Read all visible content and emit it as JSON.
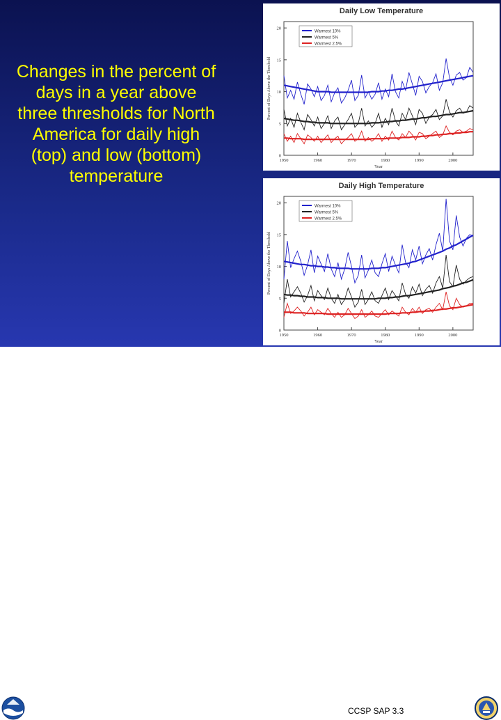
{
  "slide": {
    "body_text": "Changes in the percent of days in a year above three thresholds for North America for daily high (top) and low (bottom) temperature",
    "source": "CCSP SAP 3.3",
    "logos": [
      "noaa-logo",
      "doc-seal"
    ]
  },
  "chart_data": [
    {
      "type": "line",
      "title": "Daily Low Temperature",
      "xlabel": "Year",
      "ylabel": "Percent of Days Above the Threshold",
      "xlim": [
        1950,
        2006
      ],
      "ylim": [
        0,
        21
      ],
      "xticks": [
        "1950",
        "1960",
        "1970",
        "1980",
        "1990",
        "2000"
      ],
      "xtick_values": [
        1950,
        1960,
        1970,
        1980,
        1990,
        2000
      ],
      "yticks": [
        "0",
        "5",
        "10",
        "15",
        "20"
      ],
      "ytick_values": [
        0,
        5,
        10,
        15,
        20
      ],
      "legend_position": "top-left",
      "x": [
        1950,
        1951,
        1952,
        1953,
        1954,
        1955,
        1956,
        1957,
        1958,
        1959,
        1960,
        1961,
        1962,
        1963,
        1964,
        1965,
        1966,
        1967,
        1968,
        1969,
        1970,
        1971,
        1972,
        1973,
        1974,
        1975,
        1976,
        1977,
        1978,
        1979,
        1980,
        1981,
        1982,
        1983,
        1984,
        1985,
        1986,
        1987,
        1988,
        1989,
        1990,
        1991,
        1992,
        1993,
        1994,
        1995,
        1996,
        1997,
        1998,
        1999,
        2000,
        2001,
        2002,
        2003,
        2004,
        2005,
        2006
      ],
      "series": [
        {
          "name": "Warmest 10%",
          "color": "#2222cc",
          "values": [
            12.5,
            9.0,
            10.2,
            8.8,
            11.5,
            9.6,
            8.0,
            11.2,
            10.4,
            9.2,
            10.8,
            8.6,
            9.4,
            11.0,
            8.4,
            9.8,
            10.6,
            8.2,
            9.0,
            10.2,
            11.8,
            8.6,
            9.4,
            12.6,
            9.0,
            10.0,
            8.8,
            9.6,
            11.4,
            8.8,
            10.4,
            9.2,
            12.8,
            10.0,
            9.0,
            11.6,
            10.2,
            13.0,
            11.2,
            9.4,
            12.4,
            11.6,
            9.8,
            10.8,
            11.4,
            12.8,
            10.2,
            11.4,
            15.2,
            12.2,
            11.0,
            12.6,
            13.0,
            11.8,
            12.2,
            13.8,
            13.0
          ],
          "trend": [
            11.0,
            10.9,
            10.8,
            10.7,
            10.6,
            10.5,
            10.4,
            10.3,
            10.2,
            10.1,
            10.0,
            10.0,
            10.0,
            10.0,
            9.9,
            9.9,
            9.9,
            9.9,
            9.9,
            9.9,
            9.9,
            9.9,
            9.9,
            9.9,
            9.9,
            9.9,
            10.0,
            10.0,
            10.0,
            10.1,
            10.1,
            10.2,
            10.2,
            10.3,
            10.4,
            10.4,
            10.5,
            10.6,
            10.7,
            10.8,
            10.9,
            11.0,
            11.1,
            11.2,
            11.3,
            11.4,
            11.5,
            11.6,
            11.7,
            11.8,
            11.9,
            12.0,
            12.1,
            12.2,
            12.3,
            12.4,
            12.5
          ]
        },
        {
          "name": "Warmest 5%",
          "color": "#222222",
          "values": [
            7.2,
            4.6,
            5.8,
            4.4,
            6.6,
            5.2,
            4.0,
            6.4,
            5.6,
            4.6,
            6.0,
            4.2,
            5.0,
            6.2,
            4.2,
            5.4,
            6.0,
            4.0,
            4.8,
            5.6,
            6.6,
            4.4,
            5.0,
            7.4,
            4.6,
            5.4,
            4.4,
            5.0,
            6.6,
            4.4,
            5.8,
            4.8,
            7.4,
            5.4,
            4.6,
            6.6,
            5.6,
            7.4,
            6.2,
            4.8,
            7.2,
            6.6,
            5.0,
            6.0,
            6.4,
            7.2,
            5.6,
            6.2,
            8.8,
            6.8,
            6.0,
            7.0,
            7.4,
            6.6,
            6.8,
            7.8,
            7.4
          ],
          "trend": [
            5.8,
            5.7,
            5.6,
            5.5,
            5.5,
            5.4,
            5.3,
            5.3,
            5.2,
            5.2,
            5.1,
            5.1,
            5.1,
            5.1,
            5.0,
            5.0,
            5.0,
            5.0,
            5.0,
            5.0,
            5.0,
            5.0,
            5.0,
            5.0,
            5.0,
            5.0,
            5.1,
            5.1,
            5.1,
            5.2,
            5.2,
            5.3,
            5.3,
            5.4,
            5.4,
            5.5,
            5.5,
            5.6,
            5.7,
            5.7,
            5.8,
            5.9,
            5.9,
            6.0,
            6.1,
            6.1,
            6.2,
            6.3,
            6.4,
            6.4,
            6.5,
            6.6,
            6.7,
            6.7,
            6.8,
            6.9,
            7.0
          ]
        },
        {
          "name": "Warmest 2.5%",
          "color": "#dd2222",
          "values": [
            3.4,
            2.2,
            3.0,
            2.0,
            3.4,
            2.6,
            1.8,
            3.2,
            2.8,
            2.2,
            3.0,
            2.0,
            2.6,
            3.2,
            2.0,
            2.6,
            3.0,
            1.8,
            2.4,
            2.8,
            3.4,
            2.2,
            2.6,
            3.8,
            2.2,
            2.8,
            2.2,
            2.6,
            3.4,
            2.2,
            3.0,
            2.4,
            3.8,
            2.8,
            2.4,
            3.4,
            2.8,
            3.8,
            3.2,
            2.4,
            3.6,
            3.4,
            2.6,
            3.0,
            3.4,
            3.8,
            2.8,
            3.2,
            4.6,
            3.6,
            3.2,
            3.8,
            4.0,
            3.6,
            3.8,
            4.2,
            4.0
          ],
          "trend": [
            2.7,
            2.7,
            2.6,
            2.6,
            2.6,
            2.6,
            2.5,
            2.5,
            2.5,
            2.5,
            2.5,
            2.5,
            2.5,
            2.5,
            2.5,
            2.5,
            2.5,
            2.5,
            2.5,
            2.5,
            2.5,
            2.5,
            2.5,
            2.5,
            2.5,
            2.5,
            2.6,
            2.6,
            2.6,
            2.6,
            2.6,
            2.7,
            2.7,
            2.7,
            2.7,
            2.8,
            2.8,
            2.8,
            2.9,
            2.9,
            2.9,
            3.0,
            3.0,
            3.1,
            3.1,
            3.2,
            3.2,
            3.3,
            3.3,
            3.4,
            3.4,
            3.5,
            3.5,
            3.6,
            3.6,
            3.7,
            3.7
          ]
        }
      ]
    },
    {
      "type": "line",
      "title": "Daily High Temperature",
      "xlabel": "Year",
      "ylabel": "Percent of Days Above the Threshold",
      "xlim": [
        1950,
        2006
      ],
      "ylim": [
        0,
        21
      ],
      "xticks": [
        "1950",
        "1960",
        "1970",
        "1980",
        "1990",
        "2000"
      ],
      "xtick_values": [
        1950,
        1960,
        1970,
        1980,
        1990,
        2000
      ],
      "yticks": [
        "0",
        "5",
        "10",
        "15",
        "20"
      ],
      "ytick_values": [
        0,
        5,
        10,
        15,
        20
      ],
      "legend_position": "top-left",
      "x": [
        1950,
        1951,
        1952,
        1953,
        1954,
        1955,
        1956,
        1957,
        1958,
        1959,
        1960,
        1961,
        1962,
        1963,
        1964,
        1965,
        1966,
        1967,
        1968,
        1969,
        1970,
        1971,
        1972,
        1973,
        1974,
        1975,
        1976,
        1977,
        1978,
        1979,
        1980,
        1981,
        1982,
        1983,
        1984,
        1985,
        1986,
        1987,
        1988,
        1989,
        1990,
        1991,
        1992,
        1993,
        1994,
        1995,
        1996,
        1997,
        1998,
        1999,
        2000,
        2001,
        2002,
        2003,
        2004,
        2005,
        2006
      ],
      "series": [
        {
          "name": "Warmest 10%",
          "color": "#2222cc",
          "values": [
            8.0,
            14.0,
            9.8,
            11.2,
            12.4,
            10.8,
            8.6,
            10.2,
            12.6,
            9.0,
            11.6,
            10.4,
            9.2,
            12.0,
            9.6,
            8.4,
            10.6,
            8.0,
            9.6,
            12.2,
            10.0,
            7.4,
            8.6,
            11.8,
            8.2,
            9.4,
            11.0,
            9.0,
            8.4,
            10.4,
            12.0,
            9.2,
            11.6,
            10.2,
            9.0,
            13.4,
            10.6,
            9.8,
            12.6,
            11.0,
            13.2,
            10.4,
            11.8,
            12.8,
            11.0,
            13.4,
            15.2,
            12.4,
            20.6,
            14.0,
            12.6,
            18.0,
            14.6,
            13.2,
            14.4,
            15.0,
            14.8
          ],
          "trend": [
            10.8,
            10.7,
            10.6,
            10.5,
            10.4,
            10.3,
            10.3,
            10.2,
            10.1,
            10.1,
            10.0,
            10.0,
            9.9,
            9.9,
            9.8,
            9.8,
            9.7,
            9.7,
            9.7,
            9.7,
            9.6,
            9.6,
            9.6,
            9.6,
            9.6,
            9.6,
            9.7,
            9.7,
            9.7,
            9.8,
            9.8,
            9.9,
            10.0,
            10.1,
            10.2,
            10.3,
            10.4,
            10.5,
            10.7,
            10.8,
            11.0,
            11.2,
            11.4,
            11.6,
            11.8,
            12.0,
            12.2,
            12.4,
            12.7,
            12.9,
            13.2,
            13.4,
            13.7,
            14.0,
            14.3,
            14.6,
            14.9
          ]
        },
        {
          "name": "Warmest 5%",
          "color": "#222222",
          "values": [
            4.2,
            8.0,
            5.2,
            6.0,
            6.8,
            5.8,
            4.4,
            5.4,
            7.0,
            4.6,
            6.2,
            5.4,
            4.8,
            6.6,
            5.0,
            4.2,
            5.6,
            4.0,
            4.8,
            6.6,
            5.2,
            3.6,
            4.4,
            6.4,
            4.0,
            4.8,
            6.0,
            4.6,
            4.2,
            5.4,
            6.6,
            4.8,
            6.2,
            5.4,
            4.6,
            7.4,
            5.6,
            5.0,
            6.8,
            5.8,
            7.2,
            5.4,
            6.4,
            7.0,
            5.8,
            7.4,
            8.4,
            6.6,
            11.8,
            7.6,
            6.8,
            10.2,
            8.0,
            7.2,
            7.8,
            8.2,
            8.4
          ],
          "trend": [
            5.6,
            5.5,
            5.5,
            5.4,
            5.4,
            5.3,
            5.3,
            5.2,
            5.2,
            5.2,
            5.1,
            5.1,
            5.1,
            5.0,
            5.0,
            5.0,
            5.0,
            4.9,
            4.9,
            4.9,
            4.9,
            4.9,
            4.9,
            4.9,
            4.9,
            4.9,
            4.9,
            4.9,
            5.0,
            5.0,
            5.0,
            5.1,
            5.1,
            5.2,
            5.2,
            5.3,
            5.4,
            5.4,
            5.5,
            5.6,
            5.7,
            5.8,
            5.9,
            6.0,
            6.1,
            6.2,
            6.3,
            6.5,
            6.6,
            6.7,
            6.9,
            7.0,
            7.2,
            7.4,
            7.5,
            7.7,
            7.9
          ]
        },
        {
          "name": "Warmest 2.5%",
          "color": "#dd2222",
          "values": [
            2.0,
            4.2,
            2.6,
            3.0,
            3.6,
            3.0,
            2.2,
            2.8,
            3.6,
            2.4,
            3.2,
            2.8,
            2.4,
            3.4,
            2.6,
            2.0,
            2.8,
            2.0,
            2.4,
            3.4,
            2.6,
            1.8,
            2.2,
            3.2,
            2.0,
            2.4,
            3.0,
            2.2,
            2.0,
            2.6,
            3.2,
            2.4,
            3.0,
            2.6,
            2.2,
            3.6,
            2.8,
            2.4,
            3.4,
            2.8,
            3.6,
            2.6,
            3.2,
            3.4,
            2.8,
            3.6,
            4.2,
            3.2,
            6.0,
            3.8,
            3.2,
            5.0,
            4.0,
            3.6,
            3.8,
            4.2,
            4.2
          ],
          "trend": [
            2.8,
            2.8,
            2.8,
            2.7,
            2.7,
            2.7,
            2.7,
            2.6,
            2.6,
            2.6,
            2.6,
            2.6,
            2.6,
            2.5,
            2.5,
            2.5,
            2.5,
            2.5,
            2.5,
            2.5,
            2.5,
            2.5,
            2.5,
            2.5,
            2.5,
            2.5,
            2.5,
            2.5,
            2.5,
            2.5,
            2.5,
            2.6,
            2.6,
            2.6,
            2.6,
            2.7,
            2.7,
            2.7,
            2.8,
            2.8,
            2.9,
            2.9,
            3.0,
            3.0,
            3.1,
            3.1,
            3.2,
            3.3,
            3.3,
            3.4,
            3.5,
            3.5,
            3.6,
            3.7,
            3.8,
            3.9,
            4.0
          ]
        }
      ]
    }
  ]
}
